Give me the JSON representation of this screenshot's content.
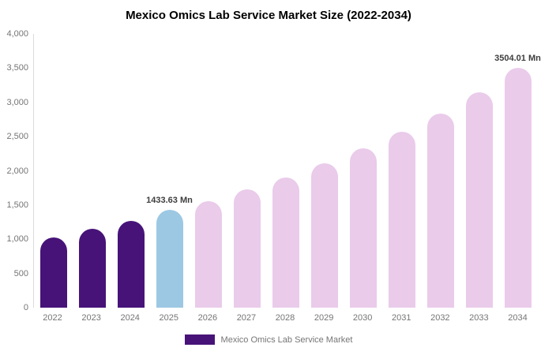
{
  "chart_data": {
    "type": "bar",
    "title": "Mexico Omics Lab Service Market Size (2022-2034)",
    "categories": [
      "2022",
      "2023",
      "2024",
      "2025",
      "2026",
      "2027",
      "2028",
      "2029",
      "2030",
      "2031",
      "2032",
      "2033",
      "2034"
    ],
    "values": [
      1030,
      1150,
      1270,
      1433.63,
      1560,
      1725,
      1900,
      2110,
      2330,
      2570,
      2840,
      3150,
      3504.01
    ],
    "bar_colors": [
      "#471379",
      "#471379",
      "#471379",
      "#9CC8E3",
      "#EACBEA",
      "#EACBEA",
      "#EACBEA",
      "#EACBEA",
      "#EACBEA",
      "#EACBEA",
      "#EACBEA",
      "#EACBEA",
      "#EACBEA"
    ],
    "data_labels": [
      "",
      "",
      "",
      "1433.63 Mn",
      "",
      "",
      "",
      "",
      "",
      "",
      "",
      "",
      "3504.01 Mn"
    ],
    "xlabel": "",
    "ylabel": "",
    "ylim": [
      0,
      4000
    ],
    "yticks": [
      0,
      500,
      1000,
      1500,
      2000,
      2500,
      3000,
      3500,
      4000
    ],
    "ytick_labels": [
      "0",
      "500",
      "1,000",
      "1,500",
      "2,000",
      "2,500",
      "3,000",
      "3,500",
      "4,000"
    ],
    "grid": false,
    "legend_position": "bottom",
    "legend": {
      "label": "Mexico Omics Lab Service Market",
      "color": "#471379"
    }
  }
}
